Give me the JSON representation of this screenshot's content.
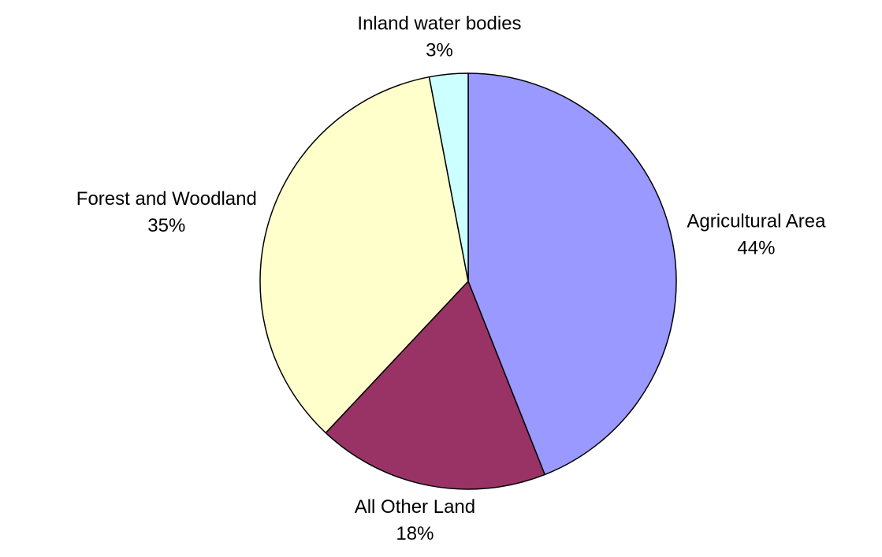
{
  "chart_data": {
    "type": "pie",
    "categories": [
      "Agricultural Area",
      "All Other Land",
      "Forest and Woodland",
      "Inland water bodies"
    ],
    "values": [
      44,
      18,
      35,
      3
    ],
    "value_labels": [
      "44%",
      "18%",
      "35%",
      "3%"
    ],
    "colors": [
      "#9999ff",
      "#993366",
      "#ffffcc",
      "#ccffff"
    ]
  }
}
